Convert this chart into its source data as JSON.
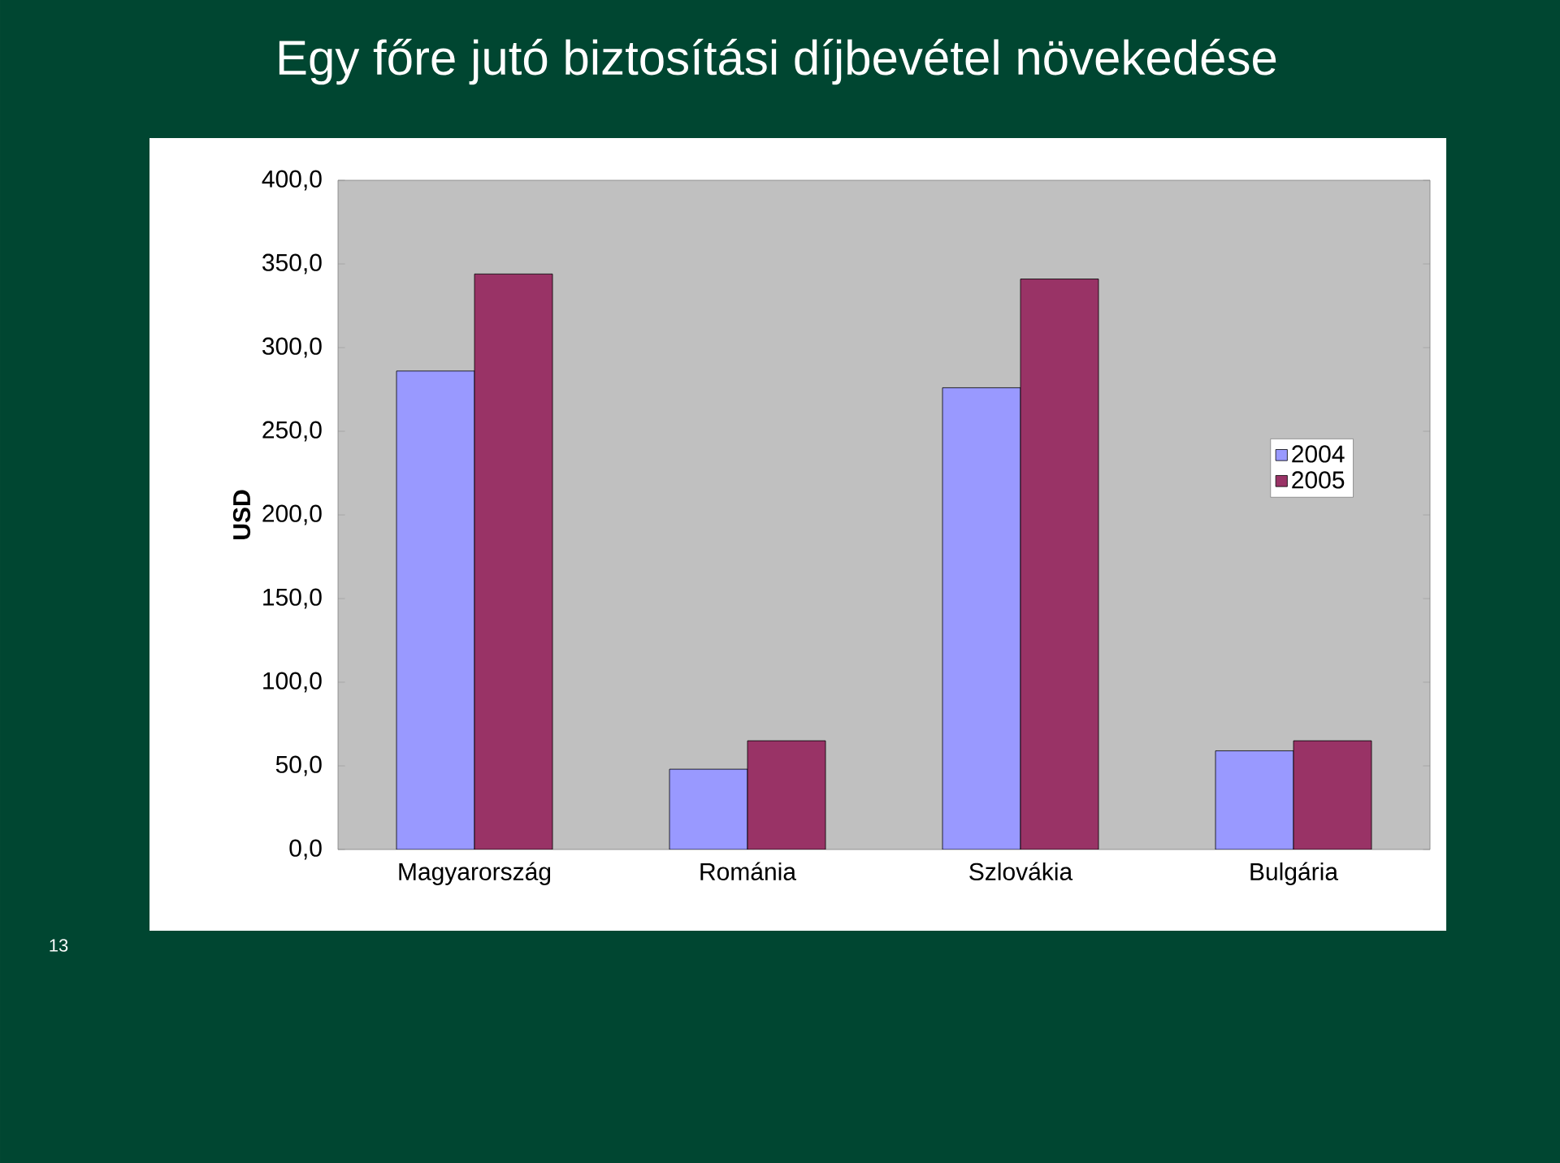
{
  "chart_data": {
    "type": "bar",
    "title": "Egy főre jutó biztosítási díjbevétel növekedése",
    "ylabel": "USD",
    "categories": [
      "Magyarország",
      "Románia",
      "Szlovákia",
      "Bulgária"
    ],
    "series": [
      {
        "name": "2004",
        "color": "#9999ff",
        "values": [
          286,
          48,
          276,
          59
        ]
      },
      {
        "name": "2005",
        "color": "#993366",
        "values": [
          344,
          65,
          341,
          65
        ]
      }
    ],
    "ylim": [
      0,
      400
    ],
    "yticks": [
      {
        "value": 0,
        "label": "0,0"
      },
      {
        "value": 50,
        "label": "50,0"
      },
      {
        "value": 100,
        "label": "100,0"
      },
      {
        "value": 150,
        "label": "150,0"
      },
      {
        "value": 200,
        "label": "200,0"
      },
      {
        "value": 250,
        "label": "250,0"
      },
      {
        "value": 300,
        "label": "300,0"
      },
      {
        "value": 350,
        "label": "350,0"
      },
      {
        "value": 400,
        "label": "400,0"
      }
    ],
    "legend": "right",
    "annotations": [
      "13"
    ]
  }
}
